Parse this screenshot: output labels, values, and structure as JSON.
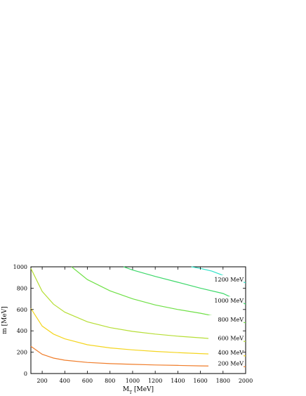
{
  "chart_data": {
    "type": "line",
    "xlabel": "M",
    "xlabel_subscript": "T",
    "xlabel_unit": " [MeV]",
    "ylabel": "m [MeV]",
    "xlim": [
      100,
      2000
    ],
    "ylim": [
      0,
      1000
    ],
    "x_ticks": [
      200,
      400,
      600,
      800,
      1000,
      1200,
      1400,
      1600,
      1800,
      2000
    ],
    "y_ticks": [
      0,
      200,
      400,
      600,
      800,
      1000
    ],
    "grid": false,
    "series": [
      {
        "name": "200 MeV",
        "color": "#f07d2a",
        "points": [
          [
            100,
            255
          ],
          [
            200,
            180
          ],
          [
            300,
            145
          ],
          [
            400,
            125
          ],
          [
            600,
            104
          ],
          [
            800,
            93
          ],
          [
            1000,
            86
          ],
          [
            1200,
            80
          ],
          [
            1400,
            76
          ],
          [
            1600,
            72
          ],
          [
            1800,
            69
          ],
          [
            2000,
            64
          ]
        ]
      },
      {
        "name": "400 MeV",
        "color": "#f4d51f",
        "points": [
          [
            100,
            610
          ],
          [
            200,
            445
          ],
          [
            300,
            370
          ],
          [
            400,
            325
          ],
          [
            600,
            270
          ],
          [
            800,
            240
          ],
          [
            1000,
            222
          ],
          [
            1200,
            207
          ],
          [
            1400,
            196
          ],
          [
            1600,
            187
          ],
          [
            1800,
            178
          ],
          [
            2000,
            165
          ]
        ]
      },
      {
        "name": "600 MeV",
        "color": "#b6de35",
        "points": [
          [
            100,
            985
          ],
          [
            200,
            770
          ],
          [
            300,
            650
          ],
          [
            400,
            575
          ],
          [
            600,
            485
          ],
          [
            800,
            430
          ],
          [
            1000,
            395
          ],
          [
            1200,
            370
          ],
          [
            1400,
            350
          ],
          [
            1600,
            335
          ],
          [
            1800,
            318
          ],
          [
            2000,
            300
          ]
        ]
      },
      {
        "name": "800 MeV",
        "color": "#6fe046",
        "points": [
          [
            460,
            1000
          ],
          [
            600,
            880
          ],
          [
            800,
            775
          ],
          [
            1000,
            700
          ],
          [
            1200,
            643
          ],
          [
            1400,
            600
          ],
          [
            1600,
            565
          ],
          [
            1800,
            522
          ],
          [
            2000,
            475
          ]
        ]
      },
      {
        "name": "1000 MeV",
        "color": "#3ed86a",
        "points": [
          [
            920,
            1000
          ],
          [
            1000,
            970
          ],
          [
            1200,
            910
          ],
          [
            1400,
            855
          ],
          [
            1600,
            800
          ],
          [
            1800,
            750
          ],
          [
            2000,
            650
          ]
        ]
      },
      {
        "name": "1200 MeV",
        "color": "#2fe2c8",
        "points": [
          [
            1520,
            1000
          ],
          [
            1600,
            985
          ],
          [
            1700,
            960
          ],
          [
            1800,
            920
          ],
          [
            1900,
            885
          ],
          [
            2000,
            850
          ]
        ]
      }
    ]
  }
}
